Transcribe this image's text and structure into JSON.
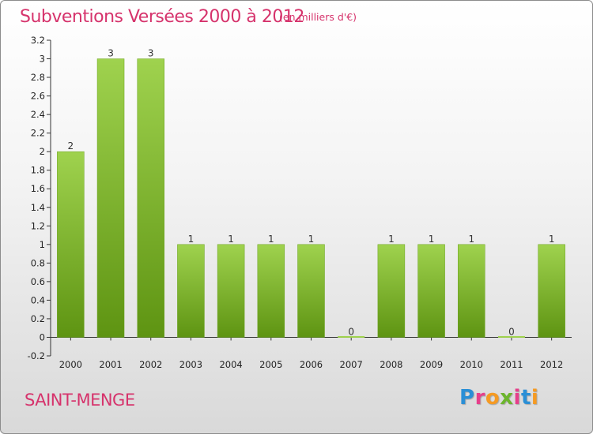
{
  "header": {
    "title": "Subventions Versées 2000 à 2012",
    "unit": "(en milliers d'€)"
  },
  "footer": {
    "commune": "SAINT-MENGE",
    "logo_text": "Proxiti",
    "logo_letters": [
      "P",
      "r",
      "o",
      "x",
      "i",
      "t",
      "i"
    ],
    "logo_colors": [
      "#2a8fd6",
      "#e63f8b",
      "#f59a23",
      "#6cb52d",
      "#e63f8b",
      "#2a8fd6",
      "#f59a23"
    ]
  },
  "chart_data": {
    "type": "bar",
    "categories": [
      "2000",
      "2001",
      "2002",
      "2003",
      "2004",
      "2005",
      "2006",
      "2007",
      "2008",
      "2009",
      "2010",
      "2011",
      "2012"
    ],
    "values": [
      2,
      3,
      3,
      1,
      1,
      1,
      1,
      0,
      1,
      1,
      1,
      0,
      1
    ],
    "data_labels": [
      "2",
      "3",
      "3",
      "1",
      "1",
      "1",
      "1",
      "0",
      "1",
      "1",
      "1",
      "0",
      "1"
    ],
    "yticks": [
      "-0.2",
      "0",
      "0.2",
      "0.4",
      "0.6",
      "0.8",
      "1",
      "1.2",
      "1.4",
      "1.6",
      "1.8",
      "2",
      "2.2",
      "2.4",
      "2.6",
      "2.8",
      "3",
      "3.2"
    ],
    "ylim": [
      -0.2,
      3.2
    ],
    "bar_color": "#7fba2a",
    "bar_color_light": "#9fd24e",
    "bar_color_dark": "#5e9412",
    "grid": false
  }
}
